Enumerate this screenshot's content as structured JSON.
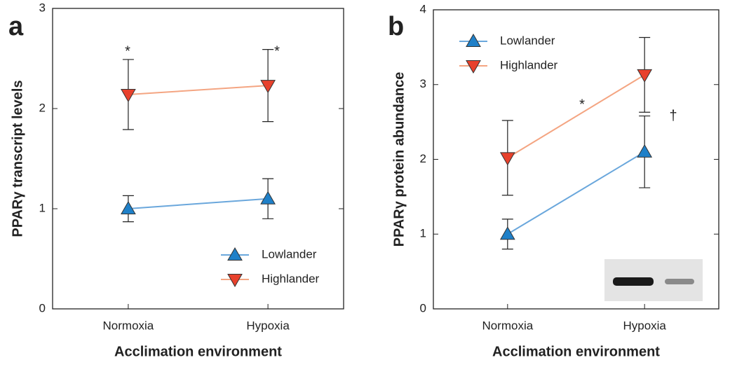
{
  "chart_data": [
    {
      "type": "line",
      "panel": "a",
      "ylabel": "PPARγ transcript levels",
      "xlabel": "Acclimation environment",
      "categories": [
        "Normoxia",
        "Hypoxia"
      ],
      "ylim": [
        0,
        3
      ],
      "yticks": [
        0,
        1,
        2,
        3
      ],
      "legend": "lower right",
      "series": [
        {
          "name": "Lowlander",
          "color": "#6aa7dc",
          "marker_color": "#1f80c8",
          "marker": "up",
          "values": [
            1.0,
            1.1
          ],
          "errors": [
            0.13,
            0.2
          ]
        },
        {
          "name": "Highlander",
          "color": "#f4a582",
          "marker_color": "#e8412c",
          "marker": "down",
          "values": [
            2.14,
            2.23
          ],
          "errors": [
            0.35,
            0.36
          ]
        }
      ],
      "annotations": [
        "*",
        "*"
      ]
    },
    {
      "type": "line",
      "panel": "b",
      "ylabel": "PPARγ protein abundance",
      "xlabel": "Acclimation environment",
      "categories": [
        "Normoxia",
        "Hypoxia"
      ],
      "ylim": [
        0,
        4
      ],
      "yticks": [
        0,
        1,
        2,
        3,
        4
      ],
      "legend": "upper left",
      "series": [
        {
          "name": "Lowlander",
          "color": "#6aa7dc",
          "marker_color": "#1f80c8",
          "marker": "up",
          "values": [
            1.0,
            2.1
          ],
          "errors": [
            0.2,
            0.48
          ]
        },
        {
          "name": "Highlander",
          "color": "#f4a582",
          "marker_color": "#e8412c",
          "marker": "down",
          "values": [
            2.02,
            3.13
          ],
          "errors": [
            0.5,
            0.5
          ]
        }
      ],
      "annotations": [
        "*",
        "†"
      ]
    }
  ]
}
